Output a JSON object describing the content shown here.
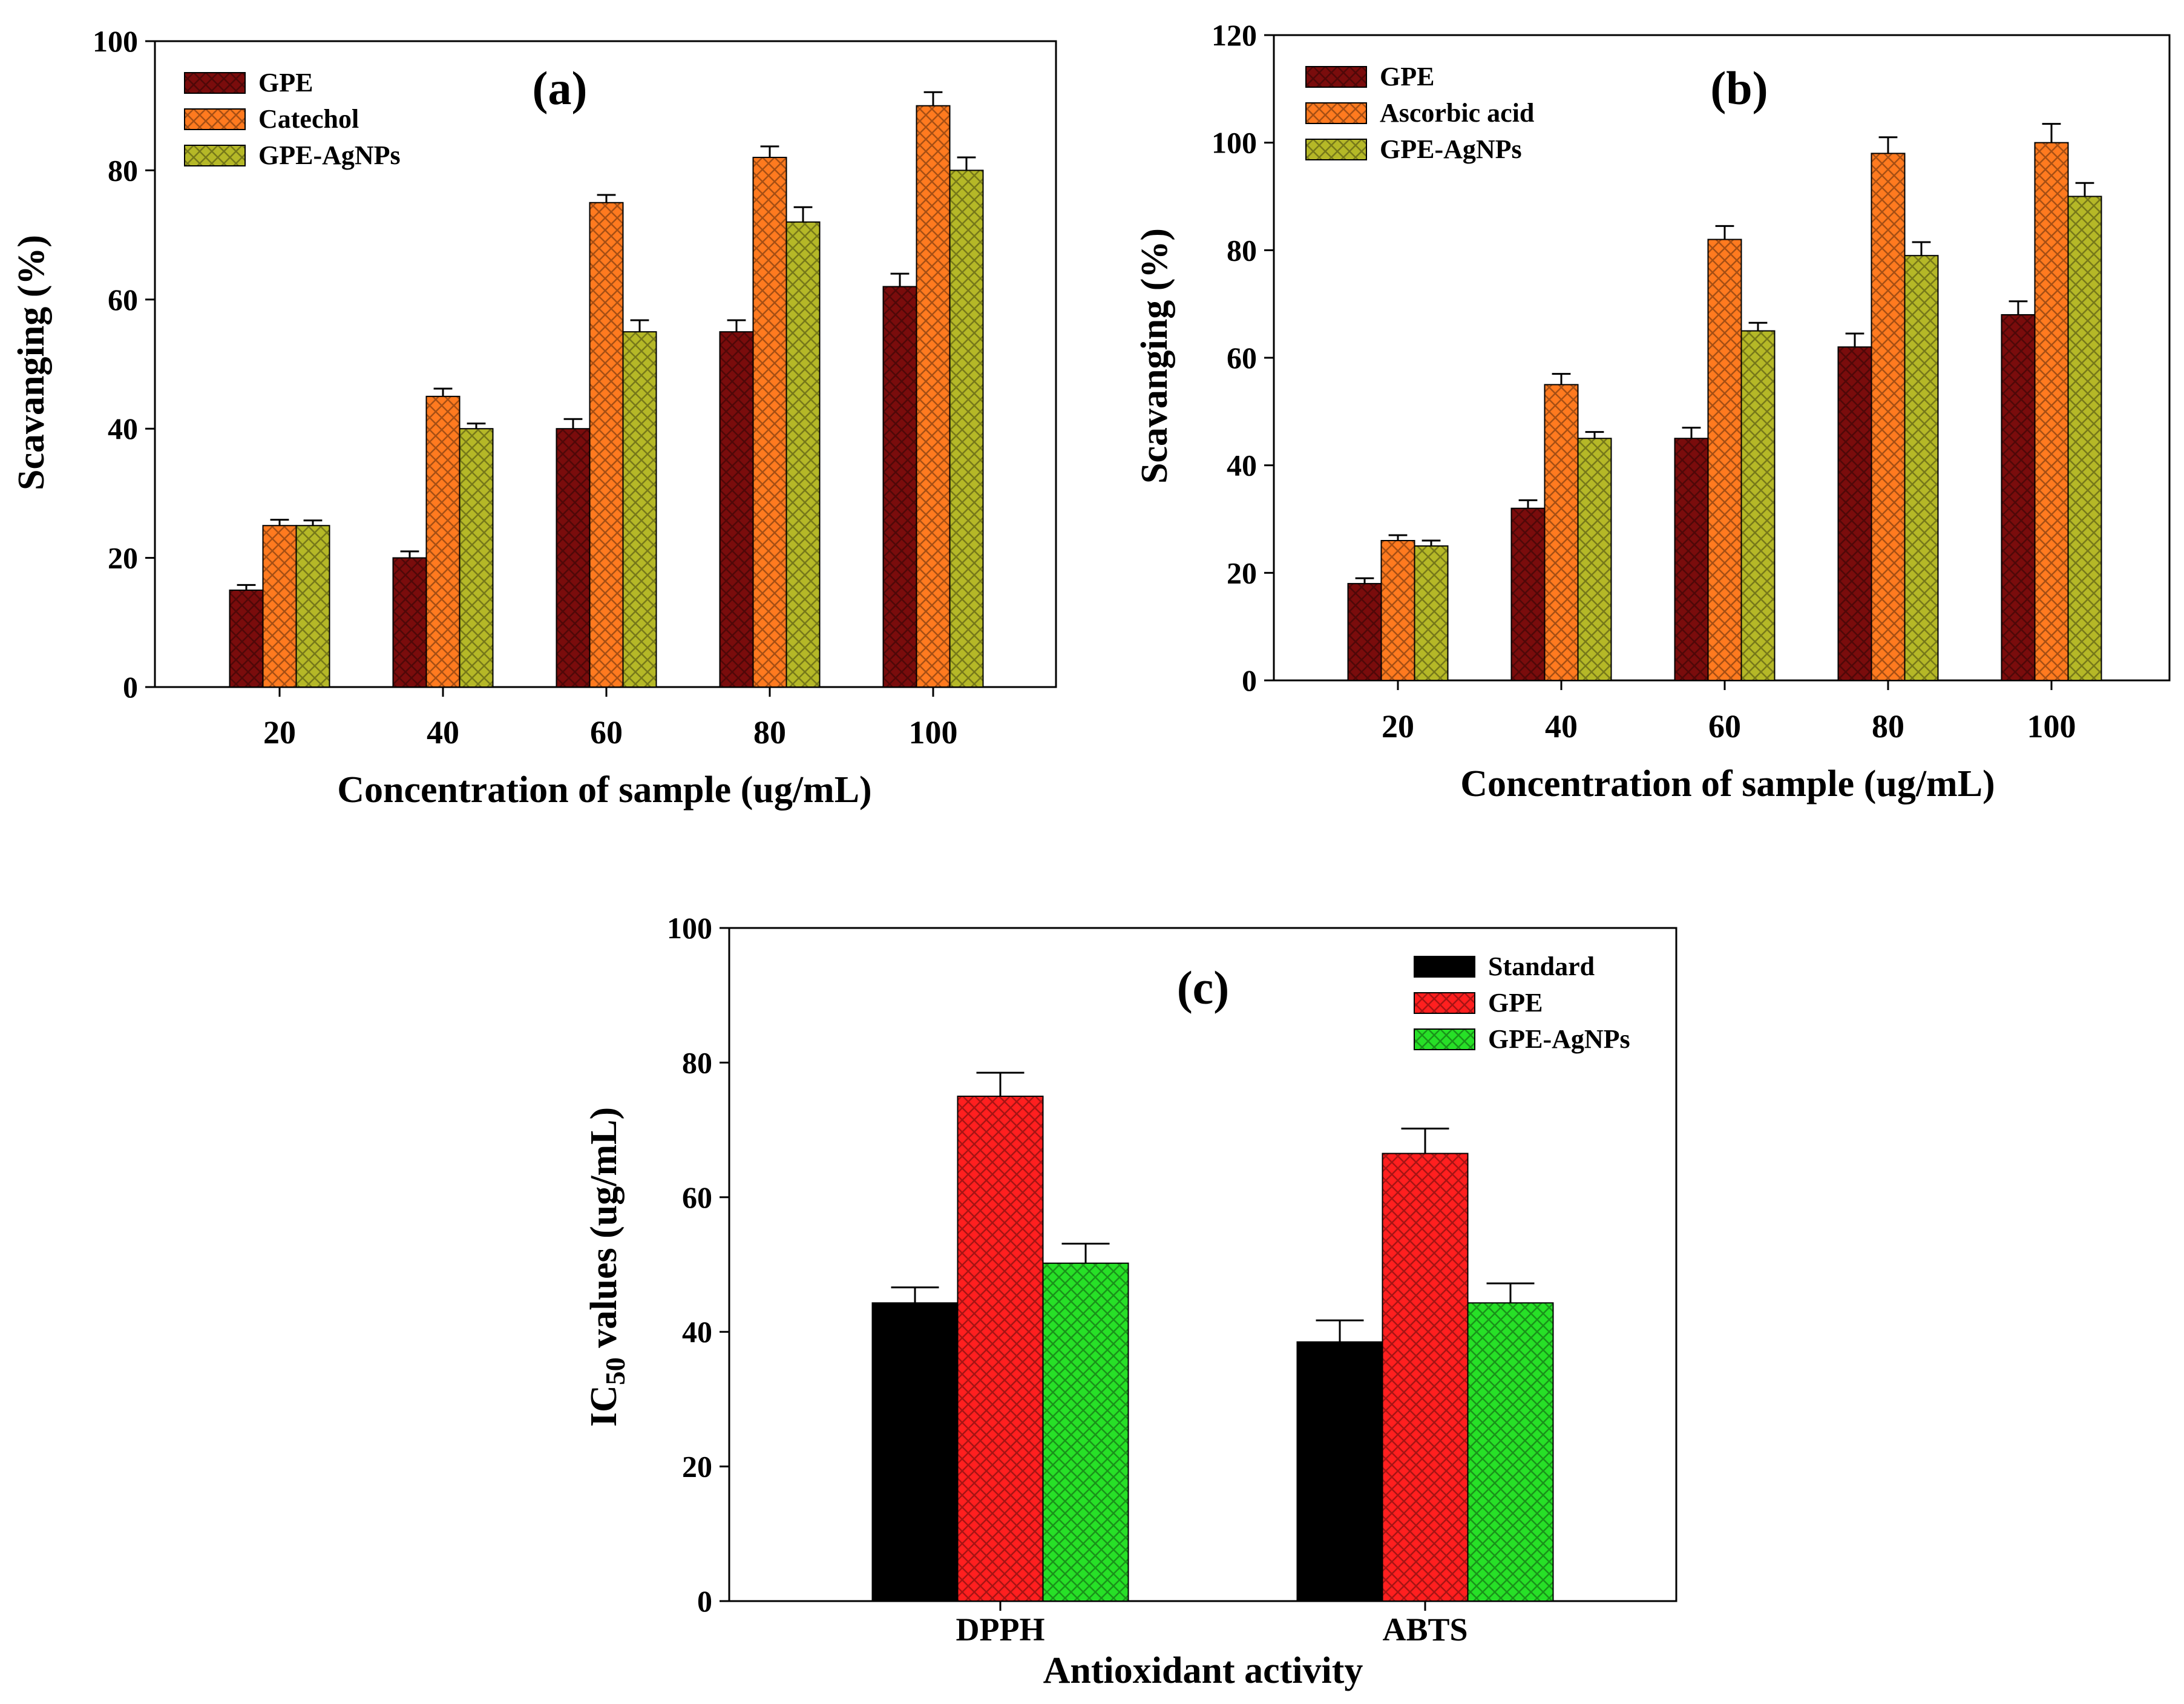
{
  "colors": {
    "dark_red": "#7a0c0c",
    "orange": "#ff7a1f",
    "olive": "#b5b827",
    "black": "#000000",
    "red": "#ff1f1f",
    "green": "#27e027",
    "axis": "#000000"
  },
  "chart_data": [
    {
      "panel": "(a)",
      "type": "bar",
      "xlabel": "Concentration of sample (ug/mL)",
      "ylabel": "Scavanging (%)",
      "ylim": [
        0,
        100
      ],
      "yticks": [
        0,
        20,
        40,
        60,
        80,
        100
      ],
      "categories": [
        "20",
        "40",
        "60",
        "80",
        "100"
      ],
      "legend_position": "top-left",
      "series": [
        {
          "name": "GPE",
          "color": "#7a0c0c",
          "values": [
            15,
            20,
            40,
            55,
            62
          ],
          "errors": [
            0.8,
            1.0,
            1.5,
            1.8,
            2.0
          ]
        },
        {
          "name": "Catechol",
          "color": "#ff7a1f",
          "values": [
            25,
            45,
            75,
            82,
            90
          ],
          "errors": [
            0.9,
            1.2,
            1.2,
            1.7,
            2.1
          ]
        },
        {
          "name": "GPE-AgNPs",
          "color": "#b5b827",
          "values": [
            25,
            40,
            55,
            72,
            80
          ],
          "errors": [
            0.8,
            0.8,
            1.8,
            2.3,
            2.0
          ]
        }
      ]
    },
    {
      "panel": "(b)",
      "type": "bar",
      "xlabel": "Concentration of sample (ug/mL)",
      "ylabel": "Scavanging (%)",
      "ylim": [
        0,
        120
      ],
      "yticks": [
        0,
        20,
        40,
        60,
        80,
        100,
        120
      ],
      "categories": [
        "20",
        "40",
        "60",
        "80",
        "100"
      ],
      "legend_position": "top-left",
      "series": [
        {
          "name": "GPE",
          "color": "#7a0c0c",
          "values": [
            18,
            32,
            45,
            62,
            68
          ],
          "errors": [
            1.0,
            1.5,
            2.0,
            2.5,
            2.5
          ]
        },
        {
          "name": "Ascorbic acid",
          "color": "#ff7a1f",
          "values": [
            26,
            55,
            82,
            98,
            100
          ],
          "errors": [
            1.0,
            2.0,
            2.5,
            3.0,
            3.5
          ]
        },
        {
          "name": "GPE-AgNPs",
          "color": "#b5b827",
          "values": [
            25,
            45,
            65,
            79,
            90
          ],
          "errors": [
            1.0,
            1.2,
            1.5,
            2.5,
            2.5
          ]
        }
      ]
    },
    {
      "panel": "(c)",
      "type": "bar",
      "xlabel": "Antioxidant activity",
      "ylabel_main": "IC",
      "ylabel_sub": "50",
      "ylabel_rest": " values (ug/mL)",
      "ylim": [
        0,
        100
      ],
      "yticks": [
        0,
        20,
        40,
        60,
        80,
        100
      ],
      "categories": [
        "DPPH",
        "ABTS"
      ],
      "legend_position": "top-right",
      "series": [
        {
          "name": "Standard",
          "color": "#000000",
          "values": [
            44.3,
            38.5
          ],
          "errors": [
            2.3,
            3.2
          ]
        },
        {
          "name": "GPE",
          "color": "#ff1f1f",
          "values": [
            75,
            66.5
          ],
          "errors": [
            3.5,
            3.7
          ]
        },
        {
          "name": "GPE-AgNPs",
          "color": "#27e027",
          "values": [
            50.2,
            44.3
          ],
          "errors": [
            2.9,
            2.9
          ]
        }
      ]
    }
  ]
}
